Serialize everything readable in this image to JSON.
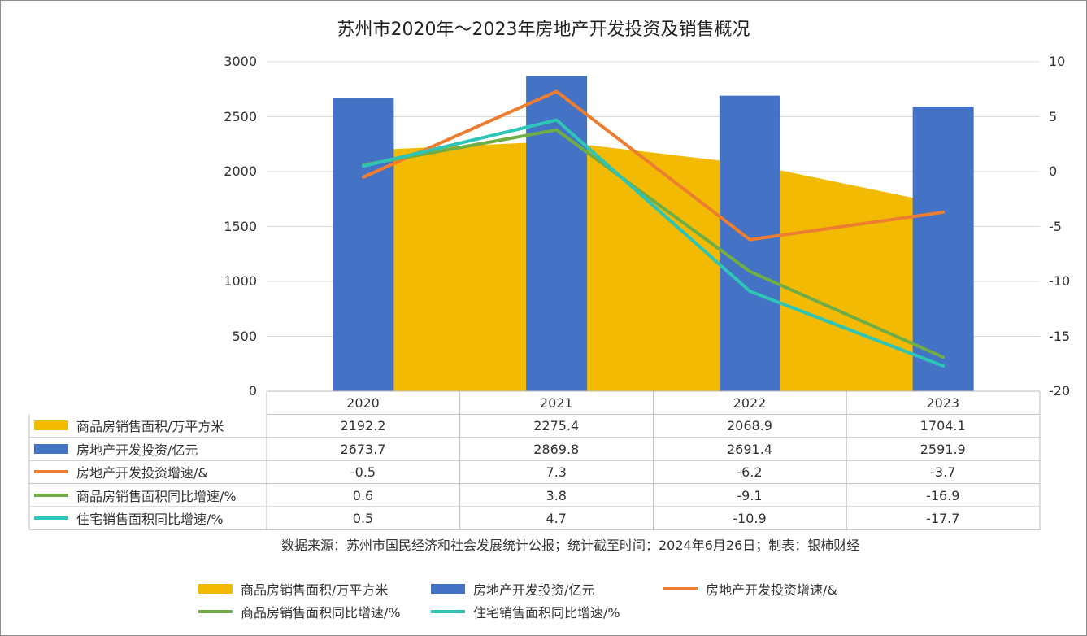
{
  "chart_data": {
    "type": "combo",
    "title": "苏州市2020年～2023年房地产开发投资及销售概况",
    "categories": [
      "2020",
      "2021",
      "2022",
      "2023"
    ],
    "y_left": {
      "ticks": [
        "0",
        "500",
        "1000",
        "1500",
        "2000",
        "2500",
        "3000"
      ],
      "range": [
        0,
        3000
      ]
    },
    "y_right": {
      "ticks": [
        "-20",
        "-15",
        "-10",
        "-5",
        "0",
        "5",
        "10"
      ],
      "range": [
        -20,
        10
      ]
    },
    "series": [
      {
        "name": "商品房销售面积/万平方米",
        "type": "area",
        "axis": "left",
        "color": "#F2BA02",
        "values": [
          2192.2,
          2275.4,
          2068.9,
          1704.1
        ],
        "labels": [
          "2192.2",
          "2275.4",
          "2068.9",
          "1704.1"
        ]
      },
      {
        "name": "房地产开发投资/亿元",
        "type": "bar",
        "axis": "left",
        "color": "#4472C4",
        "values": [
          2673.7,
          2869.8,
          2691.4,
          2591.9
        ],
        "labels": [
          "2673.7",
          "2869.8",
          "2691.4",
          "2591.9"
        ]
      },
      {
        "name": "房地产开发投资增速/&",
        "type": "line",
        "axis": "right",
        "color": "#ED7D31",
        "values": [
          -0.5,
          7.3,
          -6.2,
          -3.7
        ],
        "labels": [
          "-0.5",
          "7.3",
          "-6.2",
          "-3.7"
        ]
      },
      {
        "name": "商品房销售面积同比增速/%",
        "type": "line",
        "axis": "right",
        "color": "#70AD47",
        "values": [
          0.6,
          3.8,
          -9.1,
          -16.9
        ],
        "labels": [
          "0.6",
          "3.8",
          "-9.1",
          "-16.9"
        ]
      },
      {
        "name": "住宅销售面积同比增速/%",
        "type": "line",
        "axis": "right",
        "color": "#2EC4B6",
        "values": [
          0.5,
          4.7,
          -10.9,
          -17.7
        ],
        "labels": [
          "0.5",
          "4.7",
          "-10.9",
          "-17.7"
        ]
      }
    ],
    "source": "数据来源：苏州市国民经济和社会发展统计公报；统计截至时间：2024年6月26日；制表：银柿财经",
    "legend_position": "bottom",
    "data_table": true
  }
}
